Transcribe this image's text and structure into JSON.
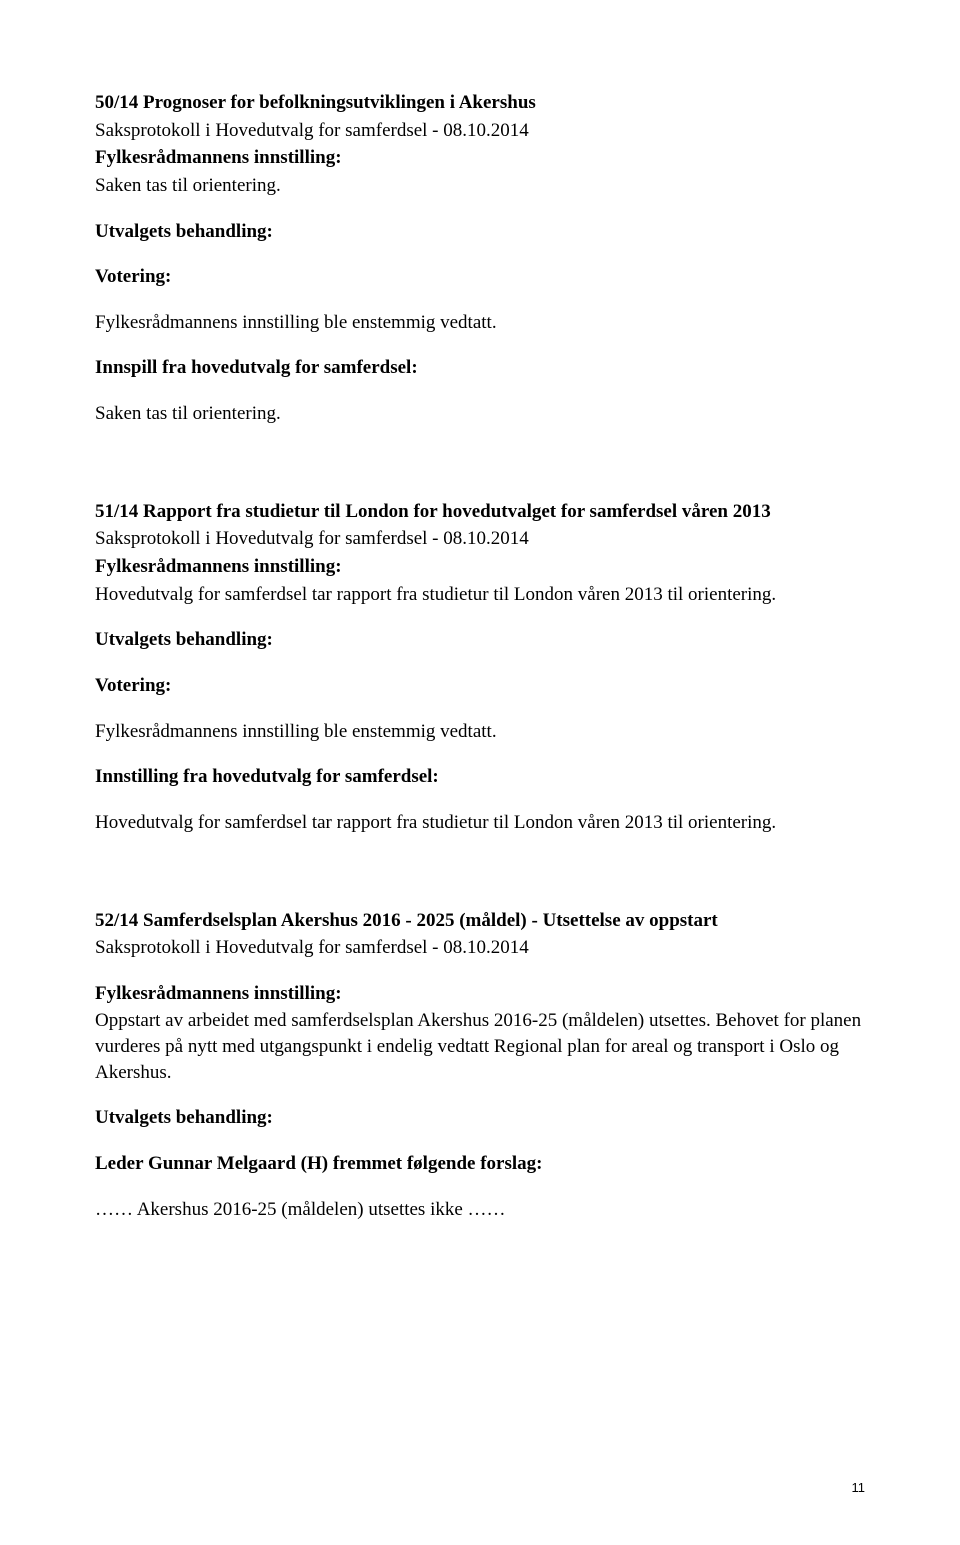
{
  "item50": {
    "title": "50/14 Prognoser for befolkningsutviklingen i Akershus",
    "saksprotokoll": "Saksprotokoll i Hovedutvalg for samferdsel - 08.10.2014",
    "innstilling_label": "Fylkesrådmannens innstilling:",
    "innstilling_text": "Saken tas til orientering.",
    "behandling_label": "Utvalgets behandling:",
    "votering_label": "Votering:",
    "votering_text": "Fylkesrådmannens innstilling ble enstemmig vedtatt.",
    "innspill_label": "Innspill fra hovedutvalg for samferdsel:",
    "innspill_text": "Saken tas til orientering."
  },
  "item51": {
    "title": "51/14 Rapport fra studietur til London for hovedutvalget for samferdsel våren 2013",
    "saksprotokoll": "Saksprotokoll i Hovedutvalg for samferdsel - 08.10.2014",
    "innstilling_label": "Fylkesrådmannens innstilling:",
    "innstilling_text": "Hovedutvalg for samferdsel tar rapport fra studietur til London våren 2013 til orientering.",
    "behandling_label": "Utvalgets behandling:",
    "votering_label": "Votering:",
    "votering_text": "Fylkesrådmannens innstilling ble enstemmig vedtatt.",
    "innstilling2_label": "Innstilling fra hovedutvalg for samferdsel:",
    "innstilling2_text": "Hovedutvalg for samferdsel tar rapport fra studietur til London våren 2013 til orientering."
  },
  "item52": {
    "title": "52/14 Samferdselsplan Akershus 2016 - 2025 (måldel) - Utsettelse av oppstart",
    "saksprotokoll": "Saksprotokoll i Hovedutvalg for samferdsel - 08.10.2014",
    "innstilling_label": "Fylkesrådmannens innstilling:",
    "innstilling_text": "Oppstart av arbeidet med samferdselsplan Akershus 2016-25 (måldelen) utsettes. Behovet for planen vurderes på nytt med utgangspunkt i endelig vedtatt Regional plan for areal og transport i Oslo og Akershus.",
    "behandling_label": "Utvalgets behandling:",
    "forslag_label": "Leder Gunnar Melgaard (H) fremmet følgende forslag:",
    "forslag_text": "…… Akershus 2016-25 (måldelen) utsettes ikke ……"
  },
  "page_number": "11"
}
